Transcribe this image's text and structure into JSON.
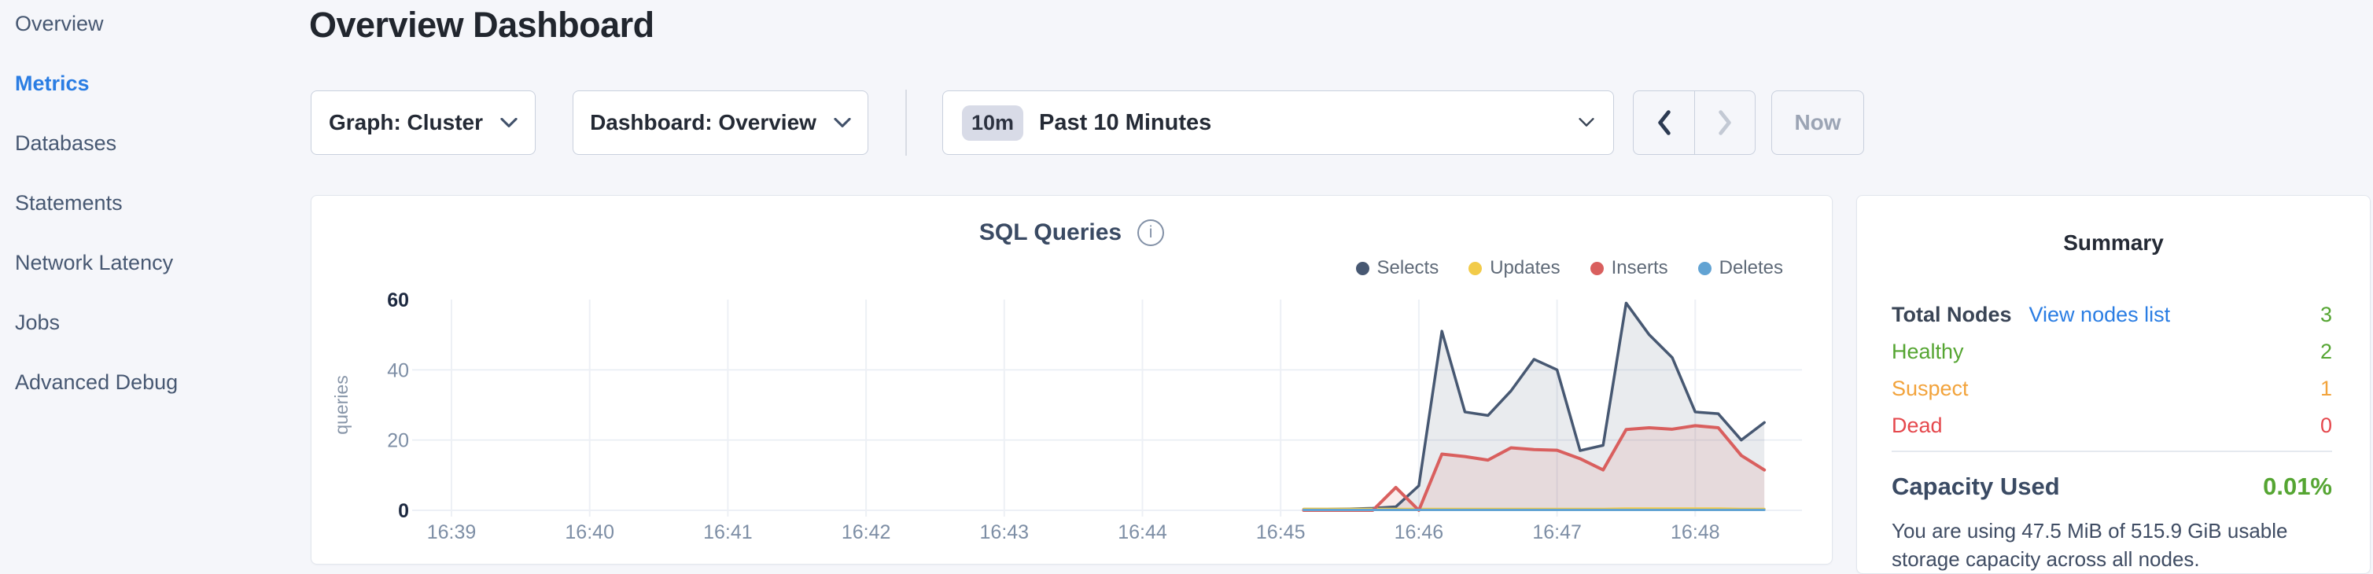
{
  "colors": {
    "accent_blue": "#2a7de3",
    "green": "#55a532",
    "orange": "#f2a33b",
    "red": "#e5484d",
    "page_bg": "#f5f6fa",
    "slate_text": "#475872"
  },
  "sidebar": {
    "items": [
      {
        "label": "Overview",
        "active": false
      },
      {
        "label": "Metrics",
        "active": true
      },
      {
        "label": "Databases",
        "active": false
      },
      {
        "label": "Statements",
        "active": false
      },
      {
        "label": "Network Latency",
        "active": false
      },
      {
        "label": "Jobs",
        "active": false
      },
      {
        "label": "Advanced Debug",
        "active": false
      }
    ]
  },
  "header": {
    "title": "Overview Dashboard"
  },
  "controls": {
    "graph_dropdown": "Graph: Cluster",
    "dashboard_dropdown": "Dashboard: Overview",
    "time_badge": "10m",
    "time_label": "Past 10 Minutes",
    "now_label": "Now"
  },
  "chart": {
    "title": "SQL Queries",
    "info_glyph": "i"
  },
  "chart_data": {
    "type": "area",
    "title": "SQL Queries",
    "ylabel": "queries",
    "xlabel": "",
    "grid": true,
    "legend_position": "top-right",
    "x_ticks": [
      "16:39",
      "16:40",
      "16:41",
      "16:42",
      "16:43",
      "16:44",
      "16:45",
      "16:46",
      "16:47",
      "16:48"
    ],
    "y_ticks": [
      0,
      20,
      40,
      60
    ],
    "ylim": [
      0,
      60
    ],
    "x_start_min": 6.1667,
    "x_step_min": 0.16667,
    "series": [
      {
        "name": "Selects",
        "color": "#475872",
        "fill": "rgba(71,88,114,0.12)",
        "width": 3.5,
        "values": [
          0.3,
          0.3,
          0.4,
          0.6,
          1,
          7,
          51,
          28,
          27,
          34,
          43,
          40,
          17,
          18.5,
          59,
          50,
          43.5,
          28,
          27.5,
          20,
          25
        ]
      },
      {
        "name": "Updates",
        "color": "#f2cb49",
        "fill": "none",
        "width": 3,
        "values": [
          0.4,
          0.4,
          0.4,
          0.4,
          0.4,
          0.4,
          0.4,
          0.4,
          0.4,
          0.4,
          0.4,
          0.4,
          0.4,
          0.4,
          0.5,
          0.5,
          0.5,
          0.5,
          0.5,
          0.4,
          0.4
        ]
      },
      {
        "name": "Inserts",
        "color": "#d95f5e",
        "fill": "rgba(217,95,94,0.12)",
        "width": 4,
        "values": [
          0,
          0,
          0,
          0,
          6.5,
          0,
          16,
          15.3,
          14.3,
          17.8,
          17.3,
          17.1,
          14.7,
          11.5,
          23,
          23.5,
          23.1,
          24.1,
          23.5,
          15.6,
          11.5
        ]
      },
      {
        "name": "Deletes",
        "color": "#62a3d3",
        "fill": "none",
        "width": 3,
        "values": [
          0.1,
          0.1,
          0.1,
          0.1,
          0.1,
          0.1,
          0.1,
          0.1,
          0.1,
          0.1,
          0.1,
          0.1,
          0.1,
          0.1,
          0.1,
          0.1,
          0.1,
          0.1,
          0.1,
          0.1,
          0.1
        ]
      }
    ]
  },
  "summary": {
    "title": "Summary",
    "rows": [
      {
        "label": "Total Nodes",
        "link": "View nodes list",
        "value": "3"
      },
      {
        "label": "Healthy",
        "value": "2"
      },
      {
        "label": "Suspect",
        "value": "1"
      },
      {
        "label": "Dead",
        "value": "0"
      }
    ],
    "capacity": {
      "label": "Capacity Used",
      "value": "0.01%"
    },
    "description": "You are using 47.5 MiB of 515.9 GiB usable storage capacity across all nodes."
  }
}
